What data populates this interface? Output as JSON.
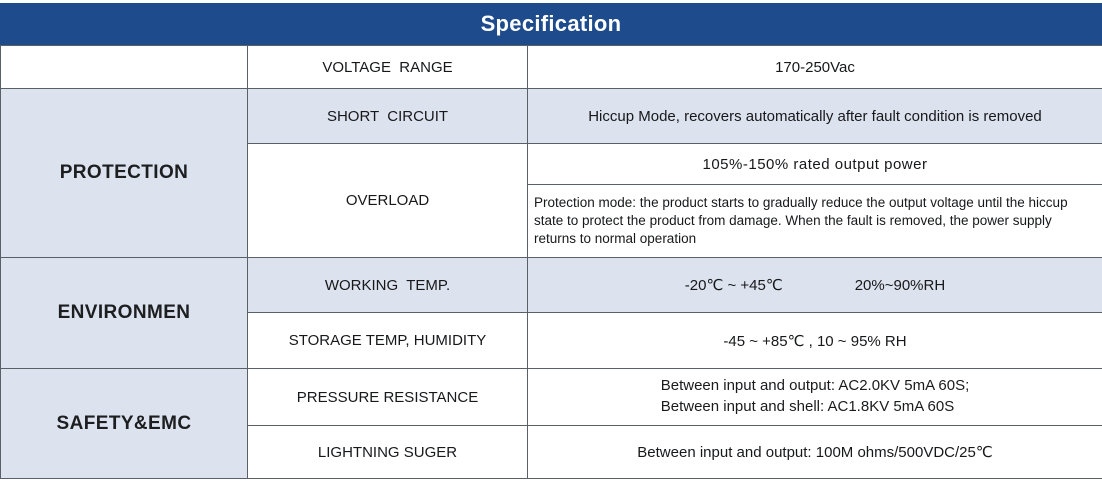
{
  "title": "Specification",
  "colors": {
    "header_bg": "#1e4b8b",
    "header_text": "#ffffff",
    "row_tint": "#dce2ee",
    "border": "#5b6068",
    "text": "#1a1b1d"
  },
  "sections": [
    {
      "label": "",
      "rows": [
        {
          "param": "VOLTAGE  RANGE",
          "value": "170-250Vac"
        }
      ]
    },
    {
      "label": "PROTECTION",
      "rows": [
        {
          "param": "SHORT  CIRCUIT",
          "value": "Hiccup Mode, recovers automatically after fault condition is removed"
        },
        {
          "param": "OVERLOAD",
          "value": "105%-150% rated output power",
          "note": "Protection mode: the product starts to gradually reduce the output voltage until the hiccup state to protect the product from damage. When the fault is removed, the power supply returns to normal operation"
        }
      ]
    },
    {
      "label": "ENVIRONMEN",
      "rows": [
        {
          "param": "WORKING  TEMP.",
          "value_temperature": "-20℃ ~ +45℃",
          "value_humidity": "20%~90%RH"
        },
        {
          "param": "STORAGE TEMP, HUMIDITY",
          "value": "-45 ~ +85℃ , 10 ~ 95% RH"
        }
      ]
    },
    {
      "label": "SAFETY&EMC",
      "rows": [
        {
          "param": "PRESSURE RESISTANCE",
          "value_line1": "Between input and output: AC2.0KV 5mA 60S;",
          "value_line2": "Between input and shell: AC1.8KV 5mA 60S"
        },
        {
          "param": "LIGHTNING SUGER",
          "value": "Between input and output: 100M ohms/500VDC/25℃"
        }
      ]
    }
  ]
}
